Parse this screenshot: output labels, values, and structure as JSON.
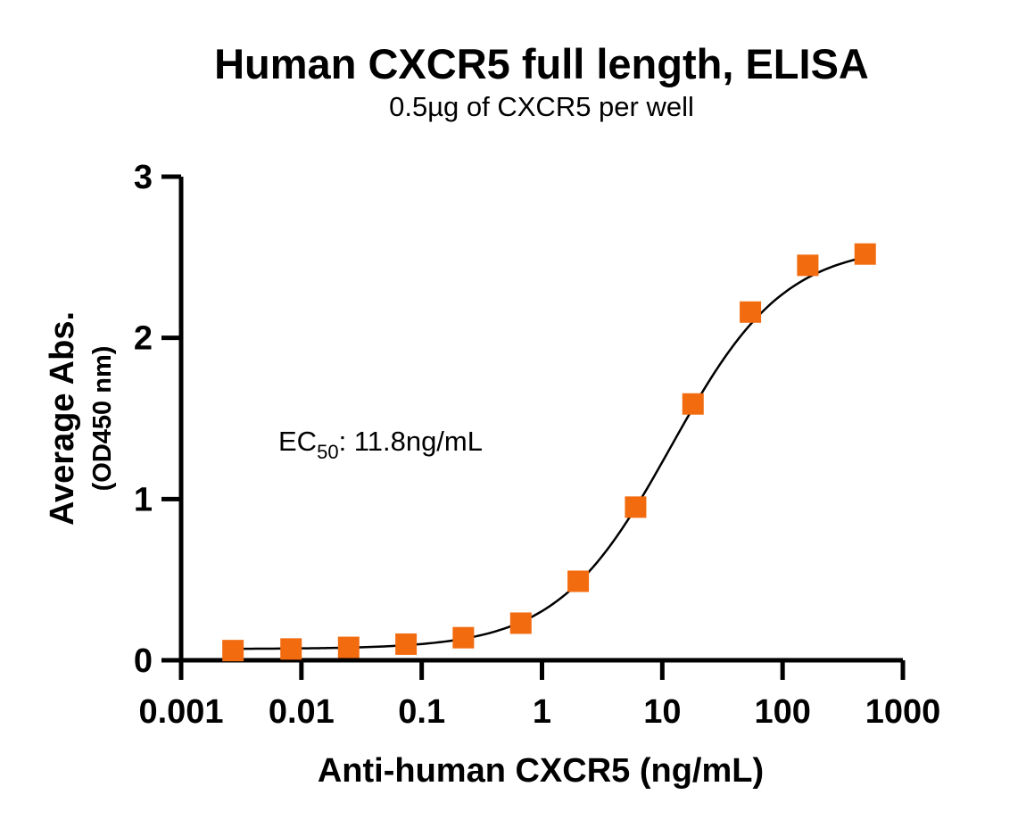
{
  "chart_data": {
    "type": "scatter",
    "title": "Human CXCR5 full length, ELISA",
    "subtitle": "0.5µg of CXCR5 per well",
    "xlabel": "Anti-human CXCR5 (ng/mL)",
    "ylabel": "Average Abs.",
    "ylabel_sub": "(OD450 nm)",
    "x_scale": "log",
    "xlim": [
      0.001,
      1000
    ],
    "ylim": [
      0,
      3
    ],
    "x_ticks": [
      0.001,
      0.01,
      0.1,
      1,
      10,
      100,
      1000
    ],
    "x_tick_labels": [
      "0.001",
      "0.01",
      "0.1",
      "1",
      "10",
      "100",
      "1000"
    ],
    "y_ticks": [
      0,
      1,
      2,
      3
    ],
    "y_tick_labels": [
      "0",
      "1",
      "2",
      "3"
    ],
    "grid": false,
    "annotation": {
      "prefix": "EC",
      "subscript": "50",
      "suffix": ": 11.8ng/mL"
    },
    "series": [
      {
        "marker": "square",
        "color": "#F26B0F",
        "x": [
          0.0027,
          0.0082,
          0.0247,
          0.0741,
          0.222,
          0.667,
          2.0,
          6.0,
          18.0,
          54.0,
          162.0,
          486.0
        ],
        "y": [
          0.06,
          0.07,
          0.08,
          0.1,
          0.14,
          0.23,
          0.49,
          0.95,
          1.59,
          2.16,
          2.45,
          2.52
        ]
      }
    ],
    "fit": {
      "type": "4PL",
      "color": "#000000",
      "bottom": 0.07,
      "top": 2.58,
      "ec50": 11.8,
      "hill": 0.92
    }
  }
}
